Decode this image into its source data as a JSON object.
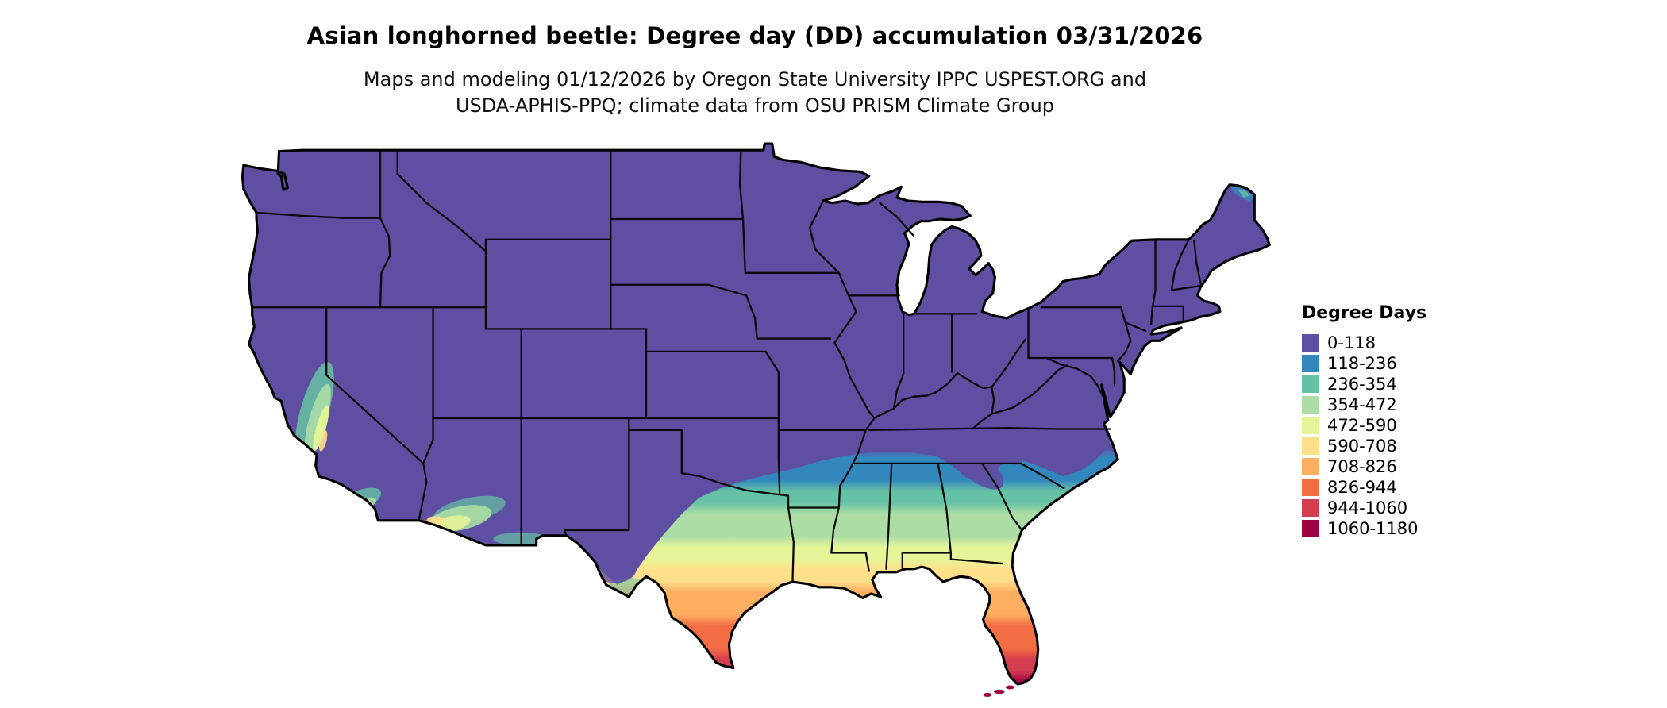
{
  "header": {
    "title": "Asian longhorned beetle: Degree day (DD) accumulation 03/31/2026",
    "subtitle_line1": "Maps and modeling 01/12/2026 by Oregon State University IPPC USPEST.ORG and",
    "subtitle_line2": "USDA-APHIS-PPQ; climate data from OSU PRISM Climate Group"
  },
  "map": {
    "description": "Continental US choropleth of accumulated degree days, cool purple in north transitioning to warm colors along the Gulf Coast, south Texas and Florida",
    "outline_color": "#000000",
    "background": "#ffffff"
  },
  "legend": {
    "title": "Degree Days",
    "items": [
      {
        "label": "0-118",
        "color": "#5e4fa2"
      },
      {
        "label": "118-236",
        "color": "#3288bd"
      },
      {
        "label": "236-354",
        "color": "#66c2a5"
      },
      {
        "label": "354-472",
        "color": "#abdda4"
      },
      {
        "label": "472-590",
        "color": "#e6f598"
      },
      {
        "label": "590-708",
        "color": "#fee08b"
      },
      {
        "label": "708-826",
        "color": "#fdae61"
      },
      {
        "label": "826-944",
        "color": "#f46d43"
      },
      {
        "label": "944-1060",
        "color": "#d53e4f"
      },
      {
        "label": "1060-1180",
        "color": "#9e0142"
      }
    ]
  }
}
